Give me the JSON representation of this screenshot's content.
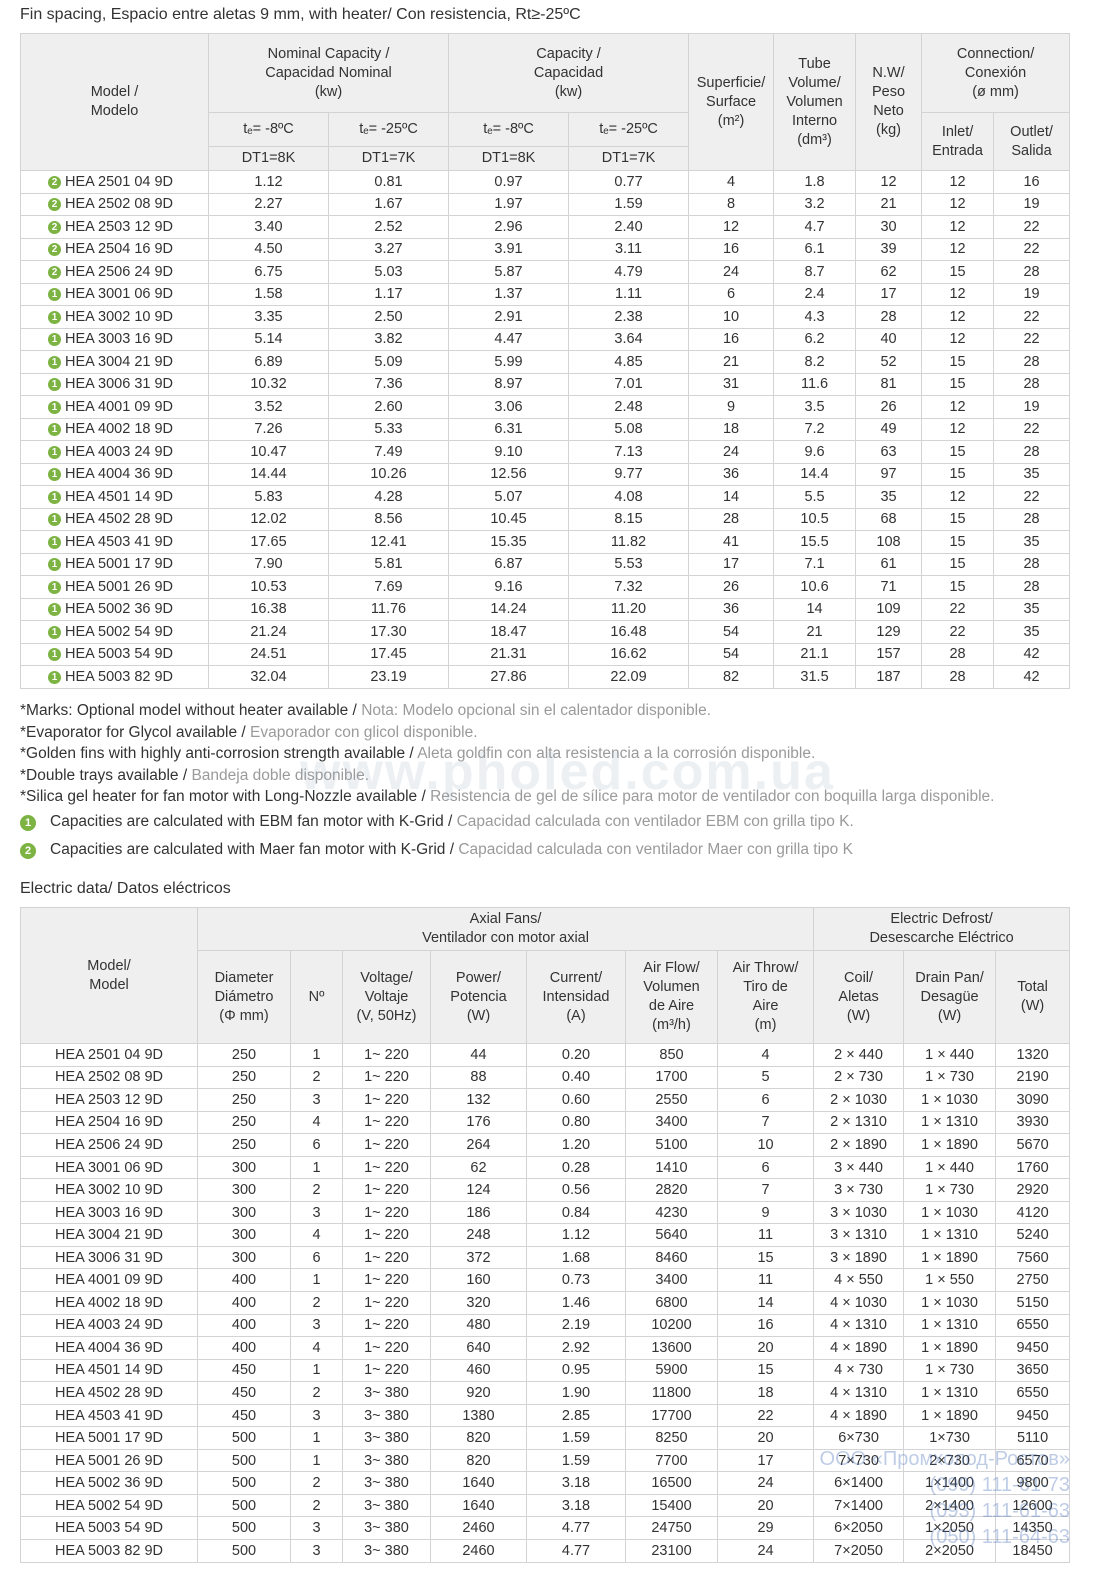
{
  "title1": "Fin spacing, Espacio entre aletas 9 mm, with heater/ Con resistencia, Rt≥-25ºC",
  "table1": {
    "headers": [
      "Model /\nModelo",
      "Nominal Capacity /\nCapacidad Nominal\n(kw)",
      "Capacity /\nCapacidad\n(kw)",
      "Superficie/\nSurface\n(m²)",
      "Tube\nVolume/\nVolumen\nInterno\n(dm³)",
      "N.W/\nPeso\nNeto\n(kg)",
      "Connection/\nConexión\n(ø mm)",
      "tₑ= -8ºC",
      "tₑ= -25ºC",
      "tₑ= -8ºC",
      "tₑ= -25ºC",
      "Inlet/\nEntrada",
      "Outlet/\nSalida",
      "DT1=8K",
      "DT1=7K",
      "DT1=8K",
      "DT1=7K"
    ],
    "rows": [
      [
        "2",
        "HEA 2501 04 9D",
        "1.12",
        "0.81",
        "0.97",
        "0.77",
        "4",
        "1.8",
        "12",
        "12",
        "16"
      ],
      [
        "2",
        "HEA 2502 08 9D",
        "2.27",
        "1.67",
        "1.97",
        "1.59",
        "8",
        "3.2",
        "21",
        "12",
        "19"
      ],
      [
        "2",
        "HEA 2503 12 9D",
        "3.40",
        "2.52",
        "2.96",
        "2.40",
        "12",
        "4.7",
        "30",
        "12",
        "22"
      ],
      [
        "2",
        "HEA 2504 16 9D",
        "4.50",
        "3.27",
        "3.91",
        "3.11",
        "16",
        "6.1",
        "39",
        "12",
        "22"
      ],
      [
        "2",
        "HEA 2506 24 9D",
        "6.75",
        "5.03",
        "5.87",
        "4.79",
        "24",
        "8.7",
        "62",
        "15",
        "28"
      ],
      [
        "1",
        "HEA 3001 06 9D",
        "1.58",
        "1.17",
        "1.37",
        "1.11",
        "6",
        "2.4",
        "17",
        "12",
        "19"
      ],
      [
        "1",
        "HEA 3002 10 9D",
        "3.35",
        "2.50",
        "2.91",
        "2.38",
        "10",
        "4.3",
        "28",
        "12",
        "22"
      ],
      [
        "1",
        "HEA 3003 16 9D",
        "5.14",
        "3.82",
        "4.47",
        "3.64",
        "16",
        "6.2",
        "40",
        "12",
        "22"
      ],
      [
        "1",
        "HEA 3004 21 9D",
        "6.89",
        "5.09",
        "5.99",
        "4.85",
        "21",
        "8.2",
        "52",
        "15",
        "28"
      ],
      [
        "1",
        "HEA 3006 31 9D",
        "10.32",
        "7.36",
        "8.97",
        "7.01",
        "31",
        "11.6",
        "81",
        "15",
        "28"
      ],
      [
        "1",
        "HEA 4001 09 9D",
        "3.52",
        "2.60",
        "3.06",
        "2.48",
        "9",
        "3.5",
        "26",
        "12",
        "19"
      ],
      [
        "1",
        "HEA 4002 18 9D",
        "7.26",
        "5.33",
        "6.31",
        "5.08",
        "18",
        "7.2",
        "49",
        "12",
        "22"
      ],
      [
        "1",
        "HEA 4003 24 9D",
        "10.47",
        "7.49",
        "9.10",
        "7.13",
        "24",
        "9.6",
        "63",
        "15",
        "28"
      ],
      [
        "1",
        "HEA 4004 36 9D",
        "14.44",
        "10.26",
        "12.56",
        "9.77",
        "36",
        "14.4",
        "97",
        "15",
        "35"
      ],
      [
        "1",
        "HEA 4501 14 9D",
        "5.83",
        "4.28",
        "5.07",
        "4.08",
        "14",
        "5.5",
        "35",
        "12",
        "22"
      ],
      [
        "1",
        "HEA 4502 28 9D",
        "12.02",
        "8.56",
        "10.45",
        "8.15",
        "28",
        "10.5",
        "68",
        "15",
        "28"
      ],
      [
        "1",
        "HEA 4503 41 9D",
        "17.65",
        "12.41",
        "15.35",
        "11.82",
        "41",
        "15.5",
        "108",
        "15",
        "35"
      ],
      [
        "1",
        "HEA 5001 17 9D",
        "7.90",
        "5.81",
        "6.87",
        "5.53",
        "17",
        "7.1",
        "61",
        "15",
        "28"
      ],
      [
        "1",
        "HEA 5001 26 9D",
        "10.53",
        "7.69",
        "9.16",
        "7.32",
        "26",
        "10.6",
        "71",
        "15",
        "28"
      ],
      [
        "1",
        "HEA 5002 36 9D",
        "16.38",
        "11.76",
        "14.24",
        "11.20",
        "36",
        "14",
        "109",
        "22",
        "35"
      ],
      [
        "1",
        "HEA 5002 54 9D",
        "21.24",
        "17.30",
        "18.47",
        "16.48",
        "54",
        "21",
        "129",
        "22",
        "35"
      ],
      [
        "1",
        "HEA 5003 54 9D",
        "24.51",
        "17.45",
        "21.31",
        "16.62",
        "54",
        "21.1",
        "157",
        "28",
        "42"
      ],
      [
        "1",
        "HEA 5003 82 9D",
        "32.04",
        "23.19",
        "27.86",
        "22.09",
        "82",
        "31.5",
        "187",
        "28",
        "42"
      ]
    ]
  },
  "notes": [
    {
      "en": "*Marks: Optional model without heater available / ",
      "es": "Nota: Modelo opcional sin el calentador disponible."
    },
    {
      "en": "*Evaporator for Glycol available / ",
      "es": "Evaporador con glicol disponible."
    },
    {
      "en": "*Golden fins with highly anti-corrosion strength available / ",
      "es": "Aleta goldfin con alta resistencia a la corrosión disponible."
    },
    {
      "en": "*Double trays available / ",
      "es": "Bandeja doble disponible."
    },
    {
      "en": "*Silica gel heater for fan motor with Long-Nozzle available / ",
      "es": "Resistencia de gel de sílice para motor de ventilador con boquilla larga disponible."
    },
    {
      "marker": "1",
      "en": "Capacities are calculated with EBM fan motor with K-Grid / ",
      "es": "Capacidad calculada con ventilador EBM con grilla tipo K."
    },
    {
      "marker": "2",
      "en": "Capacities are calculated with Maer fan motor with K-Grid / ",
      "es": "Capacidad calculada con ventilador Maer con grilla tipo K"
    }
  ],
  "title2": "Electric data/ Datos eléctricos",
  "table2": {
    "headers": [
      "Model/\nModel",
      "Axial Fans/\nVentilador con motor axial",
      "Electric Defrost/\nDesescarche Eléctrico",
      "Diameter\nDiámetro\n(Φ mm)",
      "Nº",
      "Voltage/\nVoltaje\n(V, 50Hz)",
      "Power/\nPotencia\n(W)",
      "Current/\nIntensidad\n(A)",
      "Air Flow/\nVolumen\nde Aire\n(m³/h)",
      "Air Throw/\nTiro de\nAire\n(m)",
      "Coil/\nAletas\n(W)",
      "Drain Pan/\nDesagüe\n(W)",
      "Total\n(W)"
    ],
    "rows": [
      [
        "HEA 2501 04 9D",
        "250",
        "1",
        "1~ 220",
        "44",
        "0.20",
        "850",
        "4",
        "2 × 440",
        "1 × 440",
        "1320"
      ],
      [
        "HEA 2502 08 9D",
        "250",
        "2",
        "1~ 220",
        "88",
        "0.40",
        "1700",
        "5",
        "2 × 730",
        "1 × 730",
        "2190"
      ],
      [
        "HEA 2503 12 9D",
        "250",
        "3",
        "1~ 220",
        "132",
        "0.60",
        "2550",
        "6",
        "2 × 1030",
        "1 × 1030",
        "3090"
      ],
      [
        "HEA 2504 16 9D",
        "250",
        "4",
        "1~ 220",
        "176",
        "0.80",
        "3400",
        "7",
        "2 × 1310",
        "1 × 1310",
        "3930"
      ],
      [
        "HEA 2506 24 9D",
        "250",
        "6",
        "1~ 220",
        "264",
        "1.20",
        "5100",
        "10",
        "2 × 1890",
        "1 × 1890",
        "5670"
      ],
      [
        "HEA 3001 06 9D",
        "300",
        "1",
        "1~ 220",
        "62",
        "0.28",
        "1410",
        "6",
        "3 × 440",
        "1 × 440",
        "1760"
      ],
      [
        "HEA 3002 10 9D",
        "300",
        "2",
        "1~ 220",
        "124",
        "0.56",
        "2820",
        "7",
        "3 × 730",
        "1 × 730",
        "2920"
      ],
      [
        "HEA 3003 16 9D",
        "300",
        "3",
        "1~ 220",
        "186",
        "0.84",
        "4230",
        "9",
        "3 × 1030",
        "1 × 1030",
        "4120"
      ],
      [
        "HEA 3004 21 9D",
        "300",
        "4",
        "1~ 220",
        "248",
        "1.12",
        "5640",
        "11",
        "3 × 1310",
        "1 × 1310",
        "5240"
      ],
      [
        "HEA 3006 31 9D",
        "300",
        "6",
        "1~ 220",
        "372",
        "1.68",
        "8460",
        "15",
        "3 × 1890",
        "1 × 1890",
        "7560"
      ],
      [
        "HEA 4001 09 9D",
        "400",
        "1",
        "1~ 220",
        "160",
        "0.73",
        "3400",
        "11",
        "4 × 550",
        "1 × 550",
        "2750"
      ],
      [
        "HEA 4002 18 9D",
        "400",
        "2",
        "1~ 220",
        "320",
        "1.46",
        "6800",
        "14",
        "4 × 1030",
        "1 × 1030",
        "5150"
      ],
      [
        "HEA 4003 24 9D",
        "400",
        "3",
        "1~ 220",
        "480",
        "2.19",
        "10200",
        "16",
        "4 × 1310",
        "1 × 1310",
        "6550"
      ],
      [
        "HEA 4004 36 9D",
        "400",
        "4",
        "1~ 220",
        "640",
        "2.92",
        "13600",
        "20",
        "4 × 1890",
        "1 × 1890",
        "9450"
      ],
      [
        "HEA 4501 14 9D",
        "450",
        "1",
        "1~ 220",
        "460",
        "0.95",
        "5900",
        "15",
        "4 × 730",
        "1 × 730",
        "3650"
      ],
      [
        "HEA 4502 28 9D",
        "450",
        "2",
        "3~ 380",
        "920",
        "1.90",
        "11800",
        "18",
        "4 × 1310",
        "1 × 1310",
        "6550"
      ],
      [
        "HEA 4503 41 9D",
        "450",
        "3",
        "3~ 380",
        "1380",
        "2.85",
        "17700",
        "22",
        "4 × 1890",
        "1 × 1890",
        "9450"
      ],
      [
        "HEA 5001 17 9D",
        "500",
        "1",
        "3~ 380",
        "820",
        "1.59",
        "8250",
        "20",
        "6×730",
        "1×730",
        "5110"
      ],
      [
        "HEA 5001 26 9D",
        "500",
        "1",
        "3~ 380",
        "820",
        "1.59",
        "7700",
        "17",
        "7×730",
        "2×730",
        "6570"
      ],
      [
        "HEA 5002 36 9D",
        "500",
        "2",
        "3~ 380",
        "1640",
        "3.18",
        "16500",
        "24",
        "6×1400",
        "1×1400",
        "9800"
      ],
      [
        "HEA 5002 54 9D",
        "500",
        "2",
        "3~ 380",
        "1640",
        "3.18",
        "15400",
        "20",
        "7×1400",
        "2×1400",
        "12600"
      ],
      [
        "HEA 5003 54 9D",
        "500",
        "3",
        "3~ 380",
        "2460",
        "4.77",
        "24750",
        "29",
        "6×2050",
        "1×2050",
        "14350"
      ],
      [
        "HEA 5003 82 9D",
        "500",
        "3",
        "3~ 380",
        "2460",
        "4.77",
        "23100",
        "24",
        "7×2050",
        "2×2050",
        "18450"
      ]
    ]
  },
  "watermark": "www.pholed.com.ua",
  "stamp": [
    "ООО «Промхолод-Ростов»",
    "(099) 111-61-73",
    "(093) 111-61-63",
    "(050) 111-64-63"
  ]
}
